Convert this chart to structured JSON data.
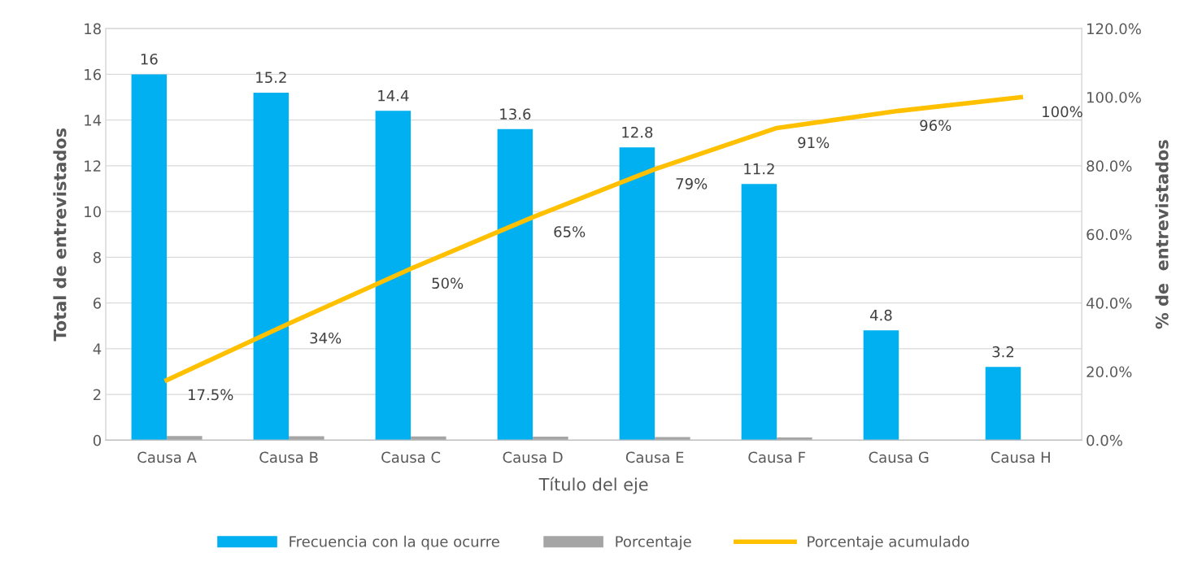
{
  "chart_data": {
    "type": "bar",
    "xlabel": "Título del eje",
    "ylabel": "Total de entrevistados",
    "y2label": "% de  entrevistados",
    "categories": [
      "Causa A",
      "Causa B",
      "Causa C",
      "Causa D",
      "Causa E",
      "Causa F",
      "Causa G",
      "Causa H"
    ],
    "series": [
      {
        "name": "Frecuencia con la que ocurre",
        "color": "#00b0f0",
        "values": [
          16,
          15.2,
          14.4,
          13.6,
          12.8,
          11.2,
          4.8,
          3.2
        ],
        "value_labels": [
          "16",
          "15.2",
          "14.4",
          "13.6",
          "12.8",
          "11.2",
          "4.8",
          "3.2"
        ]
      },
      {
        "name": "Porcentaje",
        "color": "#a5a5a5",
        "values": [
          0.18,
          0.17,
          0.16,
          0.15,
          0.14,
          0.12,
          null,
          null
        ]
      },
      {
        "name": "Porcentaje acumulado",
        "type": "line",
        "axis": "y2",
        "color": "#ffc000",
        "values": [
          17.5,
          34,
          50,
          65,
          79,
          91,
          96,
          100
        ],
        "value_labels": [
          "17.5%",
          "34%",
          "50%",
          "65%",
          "79%",
          "91%",
          "96%",
          "100%"
        ]
      }
    ],
    "ylim": [
      0,
      18
    ],
    "yticks": [
      0,
      2,
      4,
      6,
      8,
      10,
      12,
      14,
      16,
      18
    ],
    "y2lim": [
      0,
      120
    ],
    "y2ticks": [
      {
        "value": 0,
        "label": "0.0%"
      },
      {
        "value": 20,
        "label": "20.0%"
      },
      {
        "value": 40,
        "label": "40.0%"
      },
      {
        "value": 60,
        "label": "60.0%"
      },
      {
        "value": 80,
        "label": "80.0%"
      },
      {
        "value": 100,
        "label": "100.0%"
      },
      {
        "value": 120,
        "label": "120.0%"
      }
    ],
    "grid": "y",
    "legend": "bottom",
    "marker": "none",
    "line_style": "solid"
  }
}
